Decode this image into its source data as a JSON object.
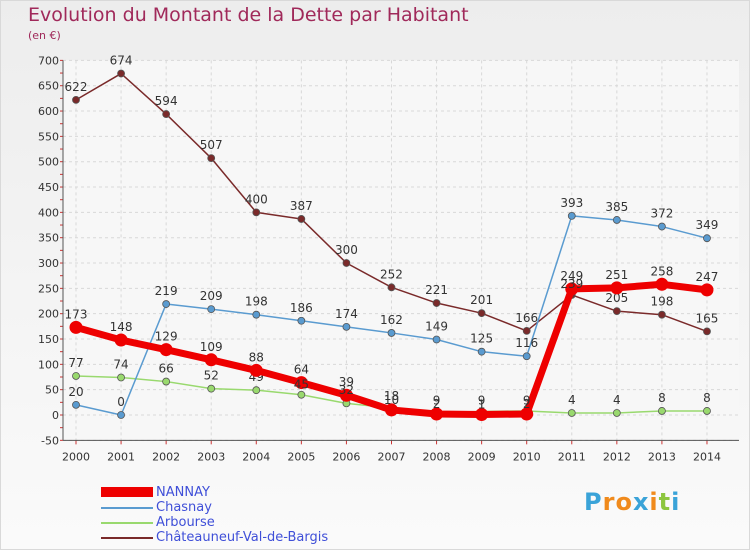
{
  "chart_data": {
    "type": "line",
    "title": "Evolution du Montant de la Dette par Habitant",
    "subtitle": "(en €)",
    "x": [
      "2000",
      "2001",
      "2002",
      "2003",
      "2004",
      "2005",
      "2006",
      "2007",
      "2008",
      "2009",
      "2010",
      "2011",
      "2012",
      "2013",
      "2014"
    ],
    "ylim": [
      -50,
      700
    ],
    "yticks": [
      -50,
      0,
      50,
      100,
      150,
      200,
      250,
      300,
      350,
      400,
      450,
      500,
      550,
      600,
      650,
      700
    ],
    "grid": true,
    "legend_position": "bottom-left",
    "series": [
      {
        "name": "Châteauneuf-Val-de-Bargis",
        "color": "#7a2a2a",
        "values": [
          622,
          674,
          594,
          507,
          400,
          387,
          300,
          252,
          221,
          201,
          166,
          237,
          205,
          198,
          165
        ],
        "labels": [
          "622",
          "674",
          "594",
          "507",
          "400",
          "387",
          "300",
          "252",
          "221",
          "201",
          "166",
          "",
          "205",
          "198",
          "165"
        ]
      },
      {
        "name": "Arbourse",
        "color": "#99d96e",
        "values": [
          77,
          74,
          66,
          52,
          49,
          40,
          23,
          14,
          5,
          7,
          8,
          4,
          4,
          8,
          8
        ],
        "labels": [
          "77",
          "74",
          "66",
          "52",
          "49",
          "",
          "",
          "",
          "",
          "",
          "",
          "4",
          "4",
          "8",
          "8"
        ]
      },
      {
        "name": "Chasnay",
        "color": "#5a9bd0",
        "values": [
          20,
          0,
          219,
          209,
          198,
          186,
          174,
          162,
          149,
          125,
          116,
          393,
          385,
          372,
          349
        ],
        "labels": [
          "20",
          "0",
          "219",
          "209",
          "198",
          "186",
          "174",
          "162",
          "149",
          "125",
          "116",
          "393",
          "385",
          "372",
          "349"
        ]
      },
      {
        "name": "NANNAY",
        "color": "#ee0000",
        "values": [
          173,
          148,
          129,
          109,
          88,
          64,
          39,
          10,
          2,
          1,
          2,
          249,
          251,
          258,
          247
        ],
        "labels": [
          "173",
          "148",
          "129",
          "109",
          "88",
          "64",
          "39",
          "",
          "",
          "",
          "",
          "249",
          "251",
          "258",
          "247"
        ]
      }
    ],
    "overlap_labels": [
      "45",
      "32",
      "18",
      "10",
      "9",
      "2",
      "9",
      "1",
      "9",
      "2",
      "239"
    ],
    "brand": {
      "text": "Proxiti",
      "letters": [
        "P",
        "r",
        "o",
        "x",
        "i",
        "t",
        "i"
      ],
      "colors": [
        "#3aa3d8",
        "#f08a1c",
        "#f08a1c",
        "#3aa3d8",
        "#f08a1c",
        "#8dc63f",
        "#3aa3d8"
      ]
    }
  }
}
